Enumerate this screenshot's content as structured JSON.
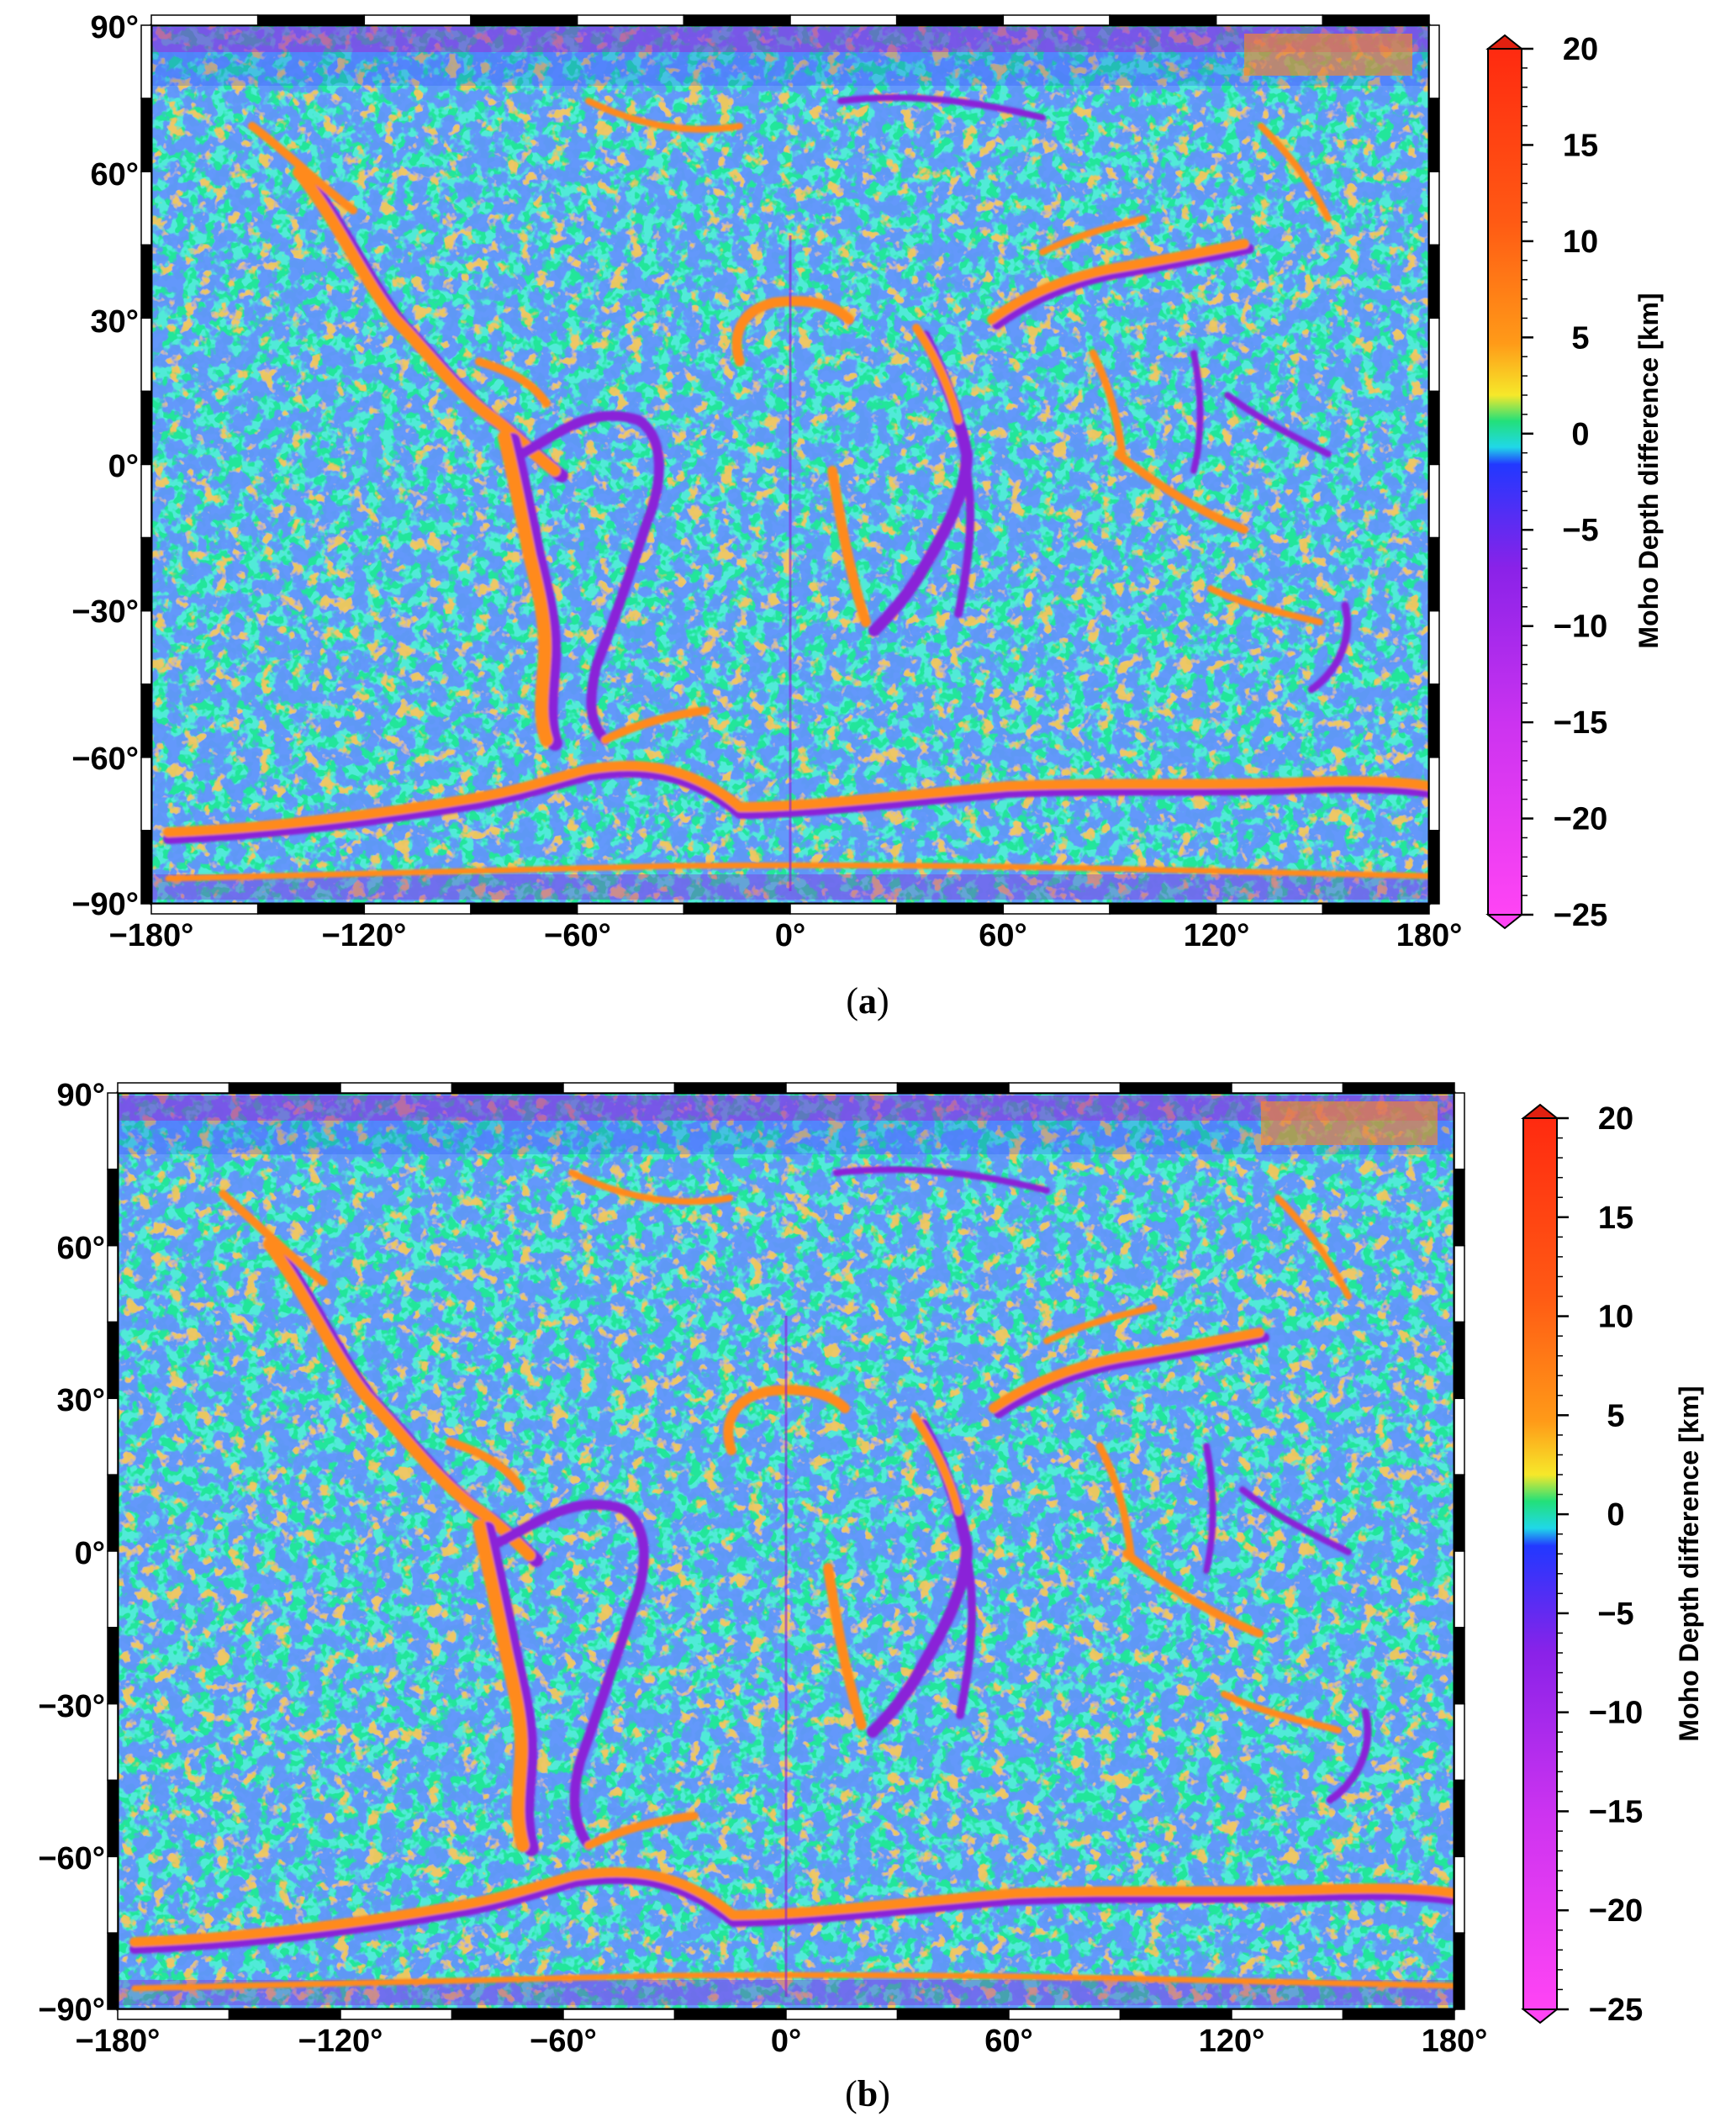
{
  "figure": {
    "panels": [
      {
        "id": "a",
        "caption_open": "(",
        "caption_letter": "a",
        "caption_close": ")",
        "map": {
          "lat_ticks": [
            "90°",
            "60°",
            "30°",
            "0°",
            "−30°",
            "−60°",
            "−90°"
          ],
          "lon_ticks": [
            "−180°",
            "−120°",
            "−60°",
            "0°",
            "60°",
            "120°",
            "180°"
          ],
          "lon_range": [
            -180,
            180
          ],
          "lat_range": [
            -90,
            90
          ]
        },
        "colorbar": {
          "title": "Moho Depth difference [km]",
          "ticks": [
            "20",
            "15",
            "10",
            "5",
            "0",
            "−5",
            "−10",
            "−15",
            "−20",
            "−25"
          ],
          "range": [
            -25,
            20
          ]
        }
      },
      {
        "id": "b",
        "caption_open": "(",
        "caption_letter": "b",
        "caption_close": ")",
        "map": {
          "lat_ticks": [
            "90°",
            "60°",
            "30°",
            "0°",
            "−30°",
            "−60°",
            "−90°"
          ],
          "lon_ticks": [
            "−180°",
            "−120°",
            "−60°",
            "0°",
            "60°",
            "120°",
            "180°"
          ],
          "lon_range": [
            -180,
            180
          ],
          "lat_range": [
            -90,
            90
          ]
        },
        "colorbar": {
          "title": "Moho Depth difference [km]",
          "ticks": [
            "20",
            "15",
            "10",
            "5",
            "0",
            "−5",
            "−10",
            "−15",
            "−20",
            "−25"
          ],
          "range": [
            -25,
            20
          ]
        }
      }
    ],
    "colors": {
      "background_field": "#22e69a",
      "positive_ridge": "#ff8a1c",
      "positive_peak": "#e02010",
      "yellow": "#f3ef2a",
      "negative_edge": "#8a22d8",
      "blue_speckle": "#2248ff",
      "cyan_speckle": "#22d8e0",
      "magenta_low": "#ff33ee"
    }
  }
}
